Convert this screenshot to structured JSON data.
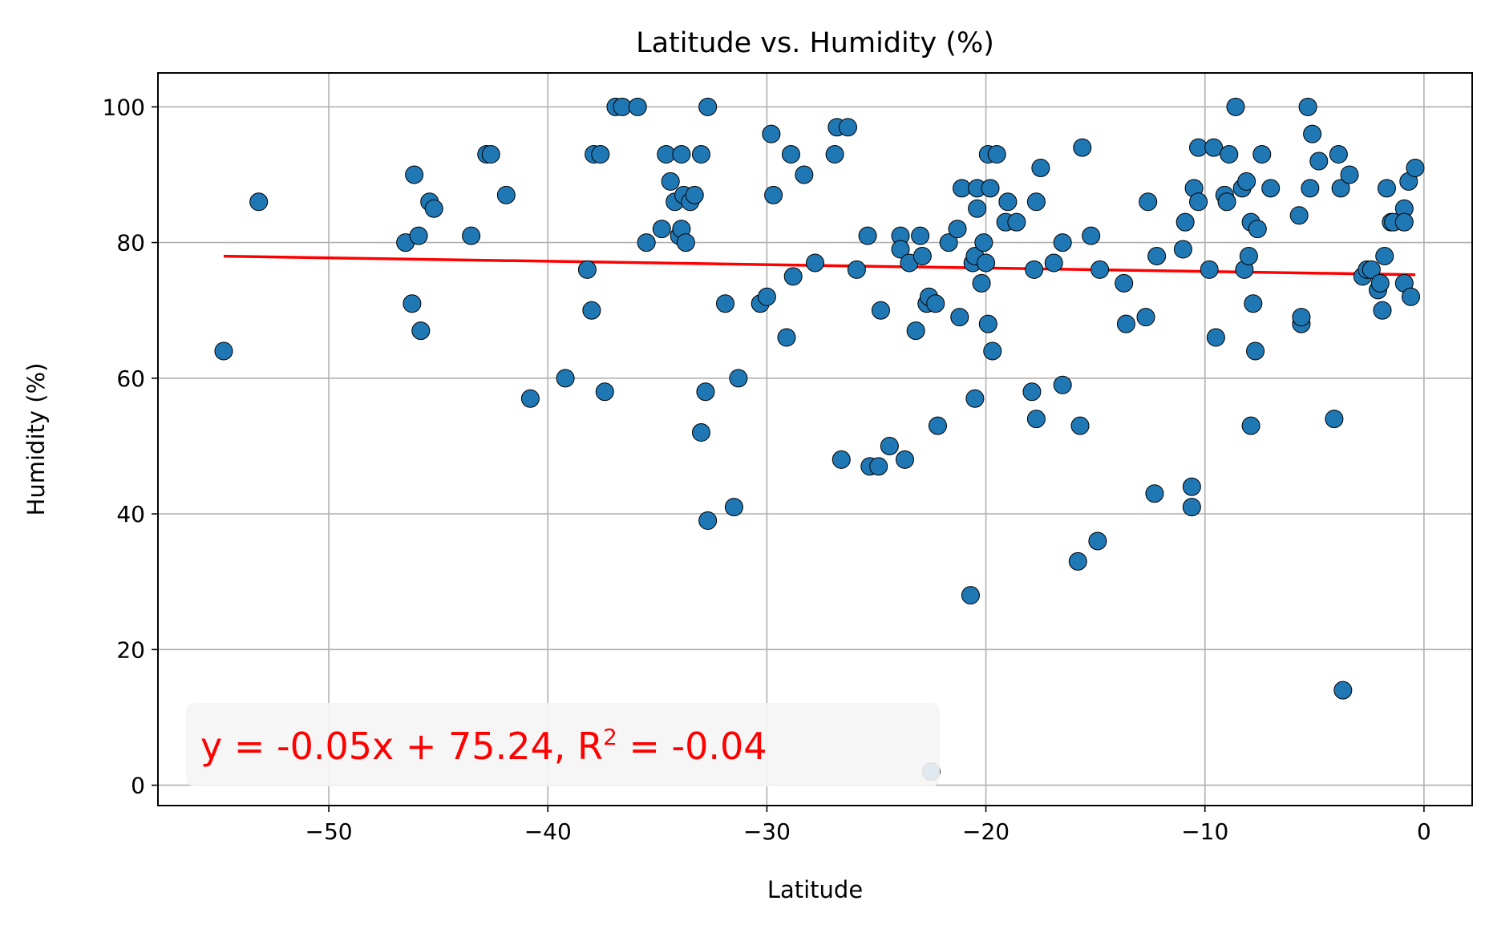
{
  "chart_data": {
    "type": "scatter",
    "title": "Latitude vs. Humidity (%)",
    "xlabel": "Latitude",
    "ylabel": "Humidity (%)",
    "xlim": [
      -57.8,
      2.2
    ],
    "ylim": [
      -3,
      105
    ],
    "x_ticks": [
      -50,
      -40,
      -30,
      -20,
      -10,
      0
    ],
    "y_ticks": [
      0,
      20,
      40,
      60,
      80,
      100
    ],
    "x_tick_labels": [
      "−50",
      "−40",
      "−30",
      "−20",
      "−10",
      "0"
    ],
    "y_tick_labels": [
      "0",
      "20",
      "40",
      "60",
      "80",
      "100"
    ],
    "grid": true,
    "point_color": "#1f77b4",
    "line_color": "#ff0000",
    "regression": {
      "slope": -0.05,
      "intercept": 75.24,
      "x_range": [
        -54.8,
        -0.4
      ]
    },
    "annotation": {
      "prefix": "y = -0.05x + 75.24, R",
      "superscript": "2",
      "suffix": " = -0.04",
      "position": "bottom-left"
    },
    "points": [
      [
        -54.8,
        64
      ],
      [
        -53.2,
        86
      ],
      [
        -46.5,
        80
      ],
      [
        -46.2,
        71
      ],
      [
        -46.1,
        90
      ],
      [
        -45.9,
        81
      ],
      [
        -45.8,
        67
      ],
      [
        -45.4,
        86
      ],
      [
        -45.2,
        85
      ],
      [
        -43.5,
        81
      ],
      [
        -42.8,
        93
      ],
      [
        -42.6,
        93
      ],
      [
        -41.9,
        87
      ],
      [
        -40.8,
        57
      ],
      [
        -39.2,
        60
      ],
      [
        -38.2,
        76
      ],
      [
        -38.0,
        70
      ],
      [
        -37.9,
        93
      ],
      [
        -37.6,
        93
      ],
      [
        -37.4,
        58
      ],
      [
        -36.9,
        100
      ],
      [
        -36.6,
        100
      ],
      [
        -35.9,
        100
      ],
      [
        -35.5,
        80
      ],
      [
        -34.8,
        82
      ],
      [
        -34.6,
        93
      ],
      [
        -34.4,
        89
      ],
      [
        -34.2,
        86
      ],
      [
        -34.0,
        81
      ],
      [
        -33.9,
        93
      ],
      [
        -33.9,
        82
      ],
      [
        -33.8,
        87
      ],
      [
        -33.7,
        80
      ],
      [
        -33.5,
        86
      ],
      [
        -33.3,
        87
      ],
      [
        -33.0,
        93
      ],
      [
        -33.0,
        52
      ],
      [
        -32.8,
        58
      ],
      [
        -32.7,
        39
      ],
      [
        -32.7,
        100
      ],
      [
        -31.9,
        71
      ],
      [
        -31.5,
        41
      ],
      [
        -31.3,
        60
      ],
      [
        -30.3,
        71
      ],
      [
        -30.0,
        72
      ],
      [
        -29.8,
        96
      ],
      [
        -29.7,
        87
      ],
      [
        -29.1,
        66
      ],
      [
        -28.9,
        93
      ],
      [
        -28.8,
        75
      ],
      [
        -28.3,
        90
      ],
      [
        -27.8,
        77
      ],
      [
        -26.9,
        93
      ],
      [
        -26.8,
        97
      ],
      [
        -26.6,
        48
      ],
      [
        -26.3,
        97
      ],
      [
        -25.9,
        76
      ],
      [
        -25.4,
        81
      ],
      [
        -25.3,
        47
      ],
      [
        -24.9,
        47
      ],
      [
        -24.8,
        70
      ],
      [
        -24.4,
        50
      ],
      [
        -23.9,
        81
      ],
      [
        -23.9,
        79
      ],
      [
        -23.7,
        48
      ],
      [
        -23.5,
        77
      ],
      [
        -23.2,
        67
      ],
      [
        -23.0,
        81
      ],
      [
        -22.9,
        78
      ],
      [
        -22.7,
        71
      ],
      [
        -22.6,
        72
      ],
      [
        -22.5,
        2
      ],
      [
        -22.3,
        71
      ],
      [
        -22.2,
        53
      ],
      [
        -21.7,
        80
      ],
      [
        -21.3,
        82
      ],
      [
        -21.2,
        69
      ],
      [
        -21.1,
        88
      ],
      [
        -20.7,
        28
      ],
      [
        -20.6,
        77
      ],
      [
        -20.5,
        78
      ],
      [
        -20.5,
        57
      ],
      [
        -20.4,
        85
      ],
      [
        -20.4,
        88
      ],
      [
        -20.2,
        74
      ],
      [
        -20.1,
        80
      ],
      [
        -20.0,
        77
      ],
      [
        -19.9,
        68
      ],
      [
        -19.9,
        93
      ],
      [
        -19.8,
        88
      ],
      [
        -19.7,
        64
      ],
      [
        -19.5,
        93
      ],
      [
        -19.1,
        83
      ],
      [
        -19.0,
        86
      ],
      [
        -18.6,
        83
      ],
      [
        -17.9,
        58
      ],
      [
        -17.8,
        76
      ],
      [
        -17.7,
        54
      ],
      [
        -17.7,
        86
      ],
      [
        -17.5,
        91
      ],
      [
        -16.9,
        77
      ],
      [
        -16.5,
        59
      ],
      [
        -16.5,
        80
      ],
      [
        -15.8,
        33
      ],
      [
        -15.7,
        53
      ],
      [
        -15.6,
        94
      ],
      [
        -15.2,
        81
      ],
      [
        -14.9,
        36
      ],
      [
        -14.8,
        76
      ],
      [
        -13.7,
        74
      ],
      [
        -13.6,
        68
      ],
      [
        -12.7,
        69
      ],
      [
        -12.6,
        86
      ],
      [
        -12.3,
        43
      ],
      [
        -12.2,
        78
      ],
      [
        -11.0,
        79
      ],
      [
        -10.9,
        83
      ],
      [
        -10.6,
        44
      ],
      [
        -10.6,
        41
      ],
      [
        -10.5,
        88
      ],
      [
        -10.3,
        86
      ],
      [
        -10.3,
        94
      ],
      [
        -9.8,
        76
      ],
      [
        -9.6,
        94
      ],
      [
        -9.5,
        66
      ],
      [
        -9.1,
        87
      ],
      [
        -9.0,
        86
      ],
      [
        -8.9,
        93
      ],
      [
        -8.6,
        100
      ],
      [
        -8.3,
        88
      ],
      [
        -8.2,
        76
      ],
      [
        -8.1,
        89
      ],
      [
        -8.0,
        78
      ],
      [
        -7.9,
        83
      ],
      [
        -7.9,
        53
      ],
      [
        -7.8,
        71
      ],
      [
        -7.7,
        64
      ],
      [
        -7.6,
        82
      ],
      [
        -7.4,
        93
      ],
      [
        -7.0,
        88
      ],
      [
        -5.7,
        84
      ],
      [
        -5.6,
        68
      ],
      [
        -5.6,
        69
      ],
      [
        -5.3,
        100
      ],
      [
        -5.2,
        88
      ],
      [
        -5.1,
        96
      ],
      [
        -4.8,
        92
      ],
      [
        -4.1,
        54
      ],
      [
        -3.9,
        93
      ],
      [
        -3.8,
        88
      ],
      [
        -3.7,
        14
      ],
      [
        -3.4,
        90
      ],
      [
        -2.8,
        75
      ],
      [
        -2.6,
        76
      ],
      [
        -2.4,
        76
      ],
      [
        -2.1,
        73
      ],
      [
        -2.0,
        74
      ],
      [
        -1.9,
        70
      ],
      [
        -1.8,
        78
      ],
      [
        -1.7,
        88
      ],
      [
        -1.5,
        83
      ],
      [
        -1.4,
        83
      ],
      [
        -0.9,
        85
      ],
      [
        -0.9,
        83
      ],
      [
        -0.9,
        74
      ],
      [
        -0.7,
        89
      ],
      [
        -0.6,
        72
      ],
      [
        -0.4,
        91
      ]
    ]
  }
}
